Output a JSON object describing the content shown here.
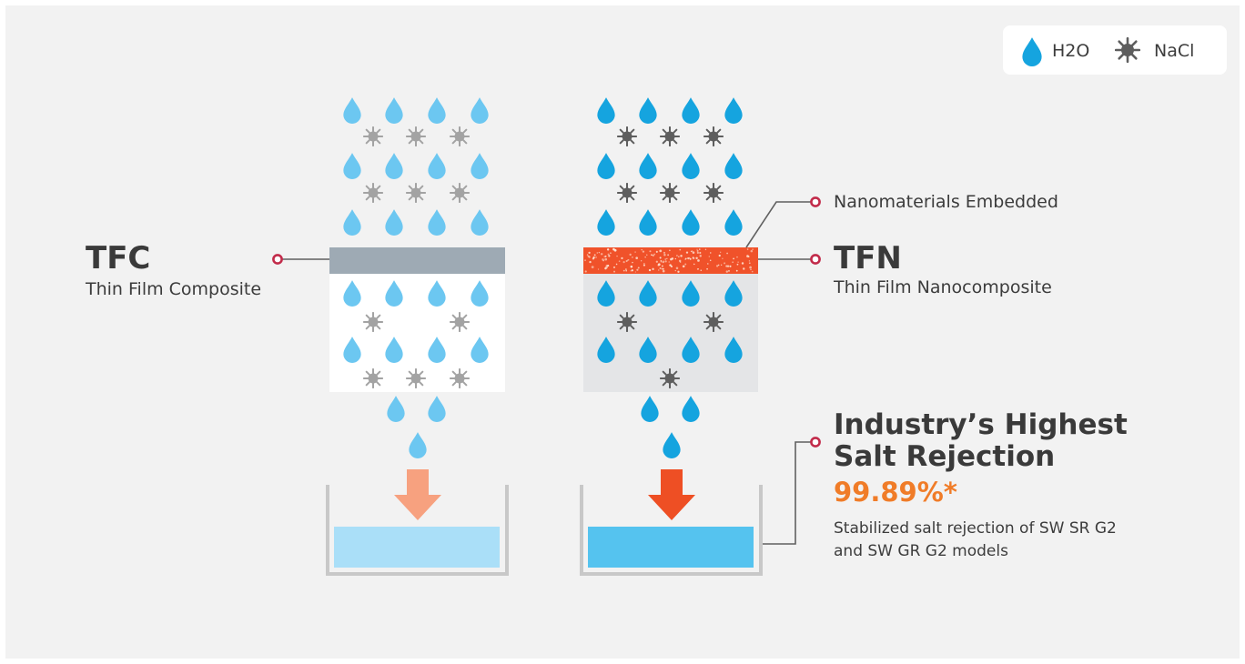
{
  "legend": {
    "water_label": "H2O",
    "salt_label": "NaCl"
  },
  "tfc": {
    "title": "TFC",
    "subtitle": "Thin Film Composite"
  },
  "tfn": {
    "title": "TFN",
    "subtitle": "Thin Film Nanocomposite",
    "layer_note": "Nanomaterials Embedded"
  },
  "highlight": {
    "headline_line1": "Industry’s Highest",
    "headline_line2": "Salt Rejection",
    "value": "99.89%*",
    "description": "Stabilized salt rejection of SW SR G2 and SW GR G2 models"
  },
  "colors": {
    "background": "#f2f2f2",
    "tfc_water": "#6cc7f1",
    "tfn_water": "#15a4df",
    "tfc_salt": "#a3a3a3",
    "tfn_salt": "#5e5e5e",
    "tfc_membrane": "#9eaab4",
    "tfn_membrane": "#f0522a",
    "tfc_arrow": "#f7a17f",
    "tfn_arrow": "#ee4f24",
    "tfc_tank_water": "#aadff8",
    "tfn_tank_water": "#55c3ef",
    "tank_wall": "#c8c8c8",
    "connector_dot": "#c22b4a"
  },
  "icons": {
    "water": "water-drop-icon",
    "salt": "salt-crystal-icon"
  }
}
